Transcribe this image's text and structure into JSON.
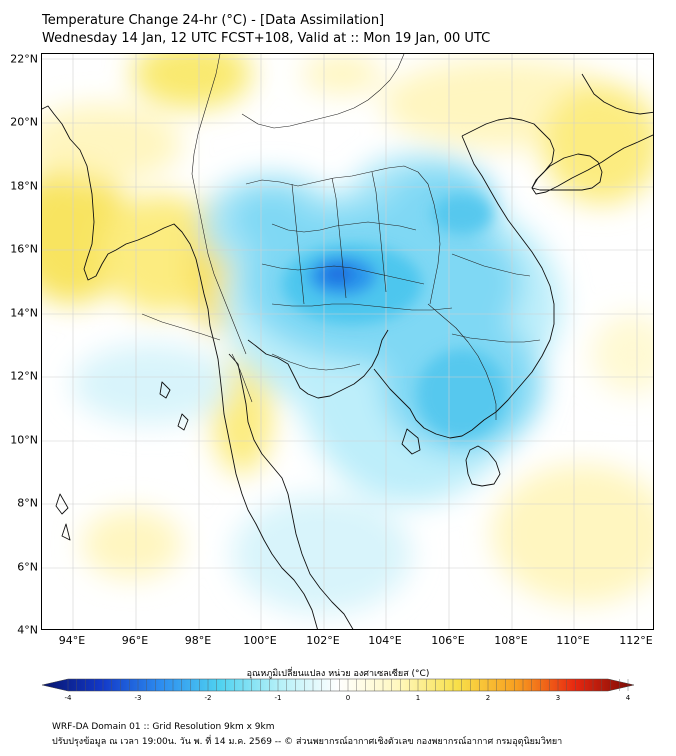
{
  "title": {
    "line1": "Temperature Change 24-hr (°C) - [Data Assimilation]",
    "line2": "Wednesday 14 Jan, 12 UTC FCST+108, Valid at :: Mon 19 Jan, 00 UTC"
  },
  "map": {
    "lat_range": [
      4,
      22
    ],
    "lon_range": [
      93,
      112.6
    ],
    "lat_labels": [
      "22°N",
      "20°N",
      "18°N",
      "16°N",
      "14°N",
      "12°N",
      "10°N",
      "8°N",
      "6°N",
      "4°N"
    ],
    "lon_labels": [
      "94°E",
      "96°E",
      "98°E",
      "100°E",
      "102°E",
      "104°E",
      "106°E",
      "108°E",
      "110°E",
      "112°E"
    ]
  },
  "colorbar": {
    "label": "อุณหภูมิเปลี่ยนแปลง หน่วย องศาเซลเซียส (°C)",
    "ticks": [
      "-4",
      "-3",
      "-2",
      "-1",
      "0",
      "1",
      "2",
      "3",
      "4"
    ],
    "min": -4,
    "max": 4,
    "colors": [
      "#08146b",
      "#1238c8",
      "#2c8cf0",
      "#4fd2f0",
      "#b4f0f8",
      "#ffffff",
      "#fff8c0",
      "#f8e04a",
      "#f8a020",
      "#e82810",
      "#780a05"
    ]
  },
  "footer": {
    "line1": "WRF-DA Domain 01 :: Grid Resolution 9km x 9km",
    "line2": "ปรับปรุงข้อมูล ณ เวลา 19:00น. วัน พ. ที่ 14 ม.ค. 2569 -- © ส่วนพยากรณ์อากาศเชิงตัวเลข กองพยากรณ์อากาศ กรมอุตุนิยมวิทยา"
  }
}
